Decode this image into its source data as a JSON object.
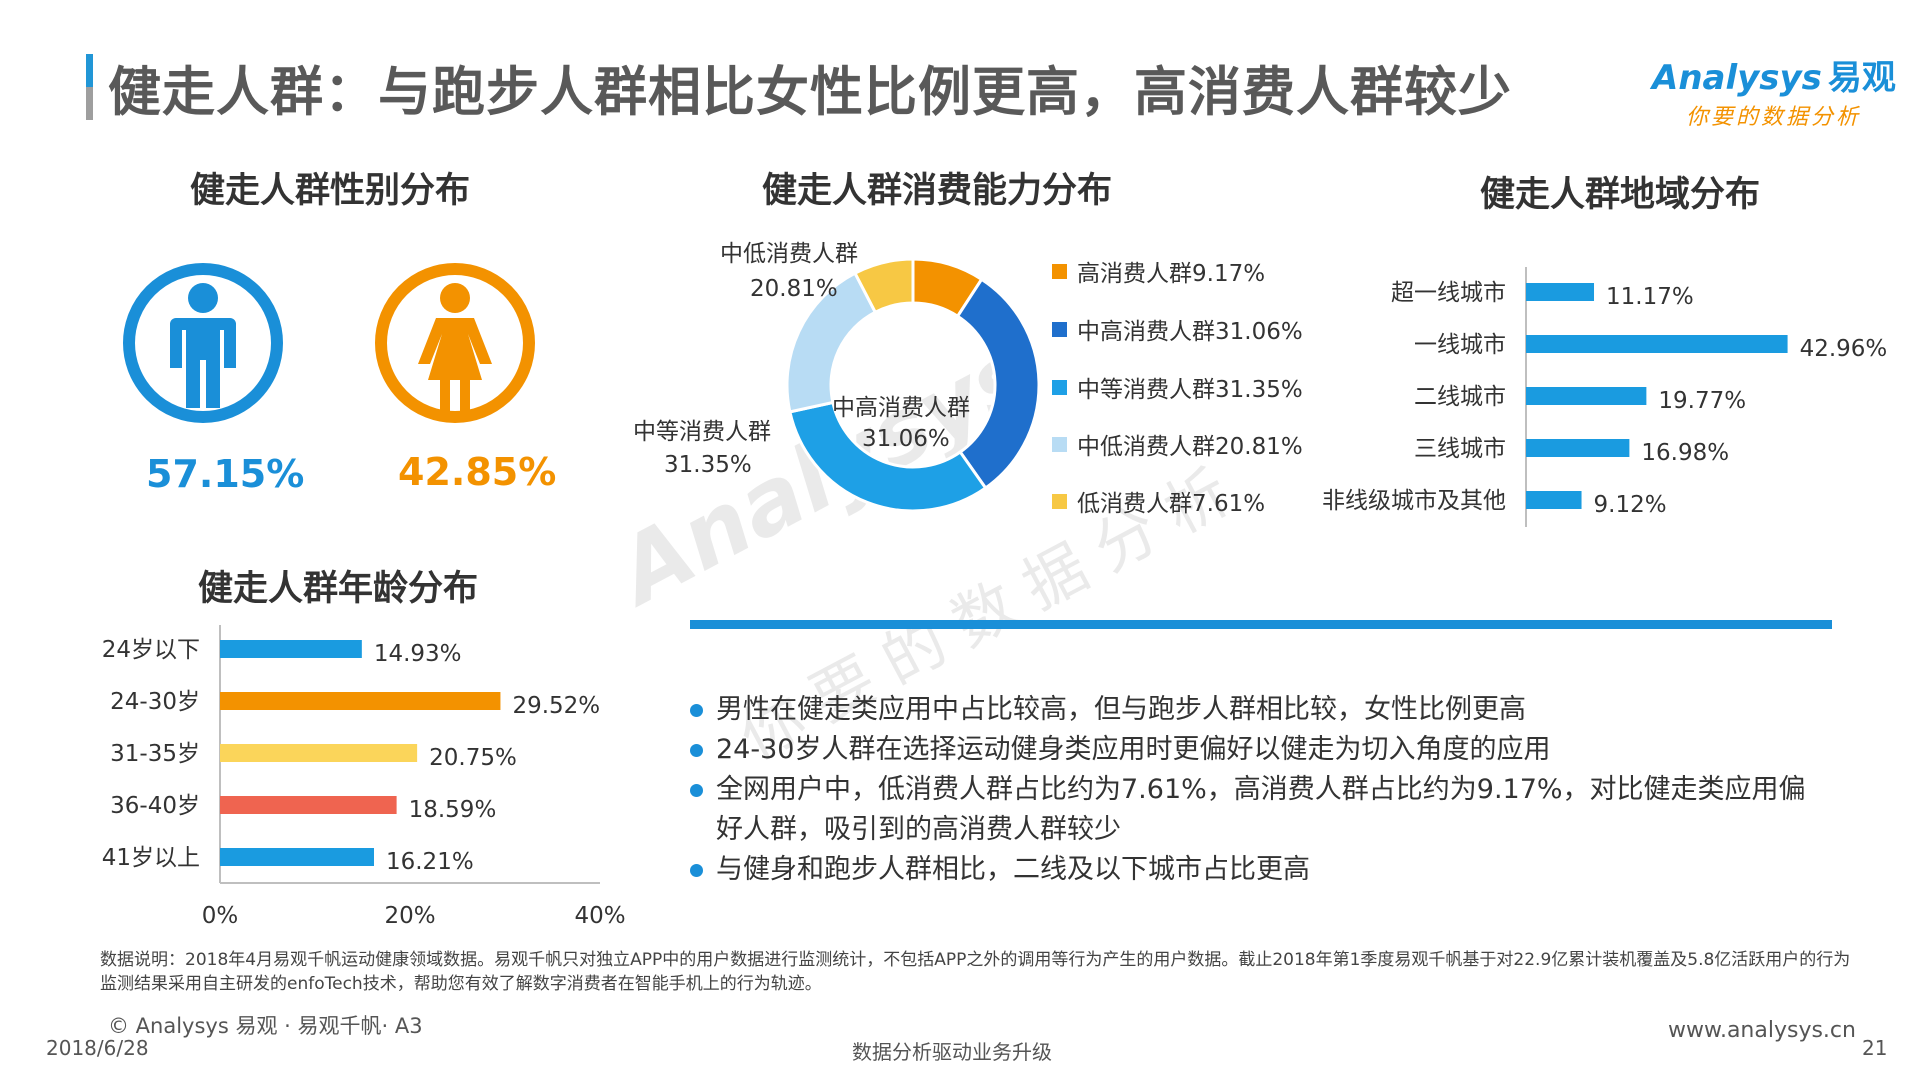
{
  "header": {
    "title": "健走人群：与跑步人群相比女性比例更高，高消费人群较少",
    "logo_en": "Analysys",
    "logo_cn": "易观",
    "logo_slogan": "你要的数据分析"
  },
  "gender": {
    "title": "健走人群性别分布",
    "male_pct": "57.15%",
    "female_pct": "42.85%",
    "male_color": "#1a8fd8",
    "female_color": "#f39200"
  },
  "consumption": {
    "title": "健走人群消费能力分布",
    "center_label": "中高消费人群",
    "center_value": "31.06%",
    "outer_labels": {
      "mid_low_name": "中低消费人群",
      "mid_low_value": "20.81%",
      "mid_name": "中等消费人群",
      "mid_value": "31.35%"
    },
    "legend": [
      "高消费人群9.17%",
      "中高消费人群31.06%",
      "中等消费人群31.35%",
      "中低消费人群20.81%",
      "低消费人群7.61%"
    ]
  },
  "region": {
    "title": "健走人群地域分布"
  },
  "age": {
    "title": "健走人群年龄分布"
  },
  "bullets": [
    "男性在健走类应用中占比较高，但与跑步人群相比较，女性比例更高",
    "24-30岁人群在选择运动健身类应用时更偏好以健走为切入角度的应用",
    "全网用户中，低消费人群占比约为7.61%，高消费人群占比约为9.17%，对比健走类应用偏好人群，吸引到的高消费人群较少",
    "与健身和跑步人群相比，二线及以下城市占比更高"
  ],
  "note": "数据说明：2018年4月易观千帆运动健康领域数据。易观千帆只对独立APP中的用户数据进行监测统计，不包括APP之外的调用等行为产生的用户数据。截止2018年第1季度易观千帆基于对22.9亿累计装机覆盖及5.8亿活跃用户的行为监测结果采用自主研发的enfoTech技术，帮助您有效了解数字消费者在智能手机上的行为轨迹。",
  "footer": {
    "copyright": "© Analysys 易观 · 易观千帆· A3",
    "date": "2018/6/28",
    "slogan": "数据分析驱动业务升级",
    "website": "www.analysys.cn",
    "page": "21"
  },
  "chart_data": [
    {
      "type": "pie",
      "title": "健走人群消费能力分布",
      "categories": [
        "高消费人群",
        "中高消费人群",
        "中等消费人群",
        "中低消费人群",
        "低消费人群"
      ],
      "values": [
        9.17,
        31.06,
        31.35,
        20.81,
        7.61
      ],
      "colors": [
        "#f39200",
        "#1f6fcc",
        "#1ea0e6",
        "#b8dcf4",
        "#f7c844"
      ],
      "donut": true
    },
    {
      "type": "bar",
      "orientation": "horizontal",
      "title": "健走人群地域分布",
      "categories": [
        "超一线城市",
        "一线城市",
        "二线城市",
        "三线城市",
        "非线级城市及其他"
      ],
      "values": [
        11.17,
        42.96,
        19.77,
        16.98,
        9.12
      ],
      "value_labels": [
        "11.17%",
        "42.96%",
        "19.77%",
        "16.98%",
        "9.12%"
      ],
      "color": "#1a9be0",
      "xlim": [
        0,
        45
      ]
    },
    {
      "type": "bar",
      "orientation": "horizontal",
      "title": "健走人群年龄分布",
      "categories": [
        "24岁以下",
        "24-30岁",
        "31-35岁",
        "36-40岁",
        "41岁以上"
      ],
      "values": [
        14.93,
        29.52,
        20.75,
        18.59,
        16.21
      ],
      "value_labels": [
        "14.93%",
        "29.52%",
        "20.75%",
        "18.59%",
        "16.21%"
      ],
      "colors": [
        "#1a9be0",
        "#f39200",
        "#fbd55a",
        "#ef6450",
        "#1a9be0"
      ],
      "xlim": [
        0,
        40
      ],
      "x_ticks": [
        "0%",
        "20%",
        "40%"
      ]
    }
  ]
}
